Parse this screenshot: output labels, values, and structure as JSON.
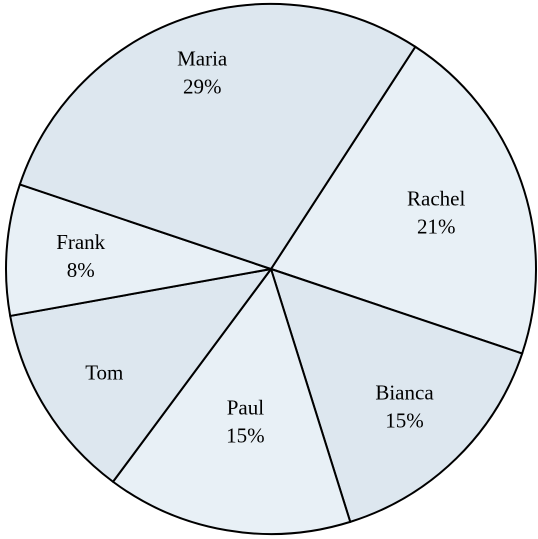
{
  "chart_data": {
    "type": "pie",
    "slices": [
      {
        "name": "Rachel",
        "value": 21,
        "label": "21%",
        "color": "#e8f0f6"
      },
      {
        "name": "Bianca",
        "value": 15,
        "label": "15%",
        "color": "#dde7ef"
      },
      {
        "name": "Paul",
        "value": 15,
        "label": "15%",
        "color": "#e8f0f6"
      },
      {
        "name": "Tom",
        "value": 12,
        "label": "",
        "color": "#dde7ef"
      },
      {
        "name": "Frank",
        "value": 8,
        "label": "8%",
        "color": "#e8f0f6"
      },
      {
        "name": "Maria",
        "value": 29,
        "label": "29%",
        "color": "#dde7ef"
      }
    ],
    "start_angle_deg": -57,
    "direction": "clockwise",
    "stroke_color": "#000000",
    "background": "#ffffff"
  }
}
